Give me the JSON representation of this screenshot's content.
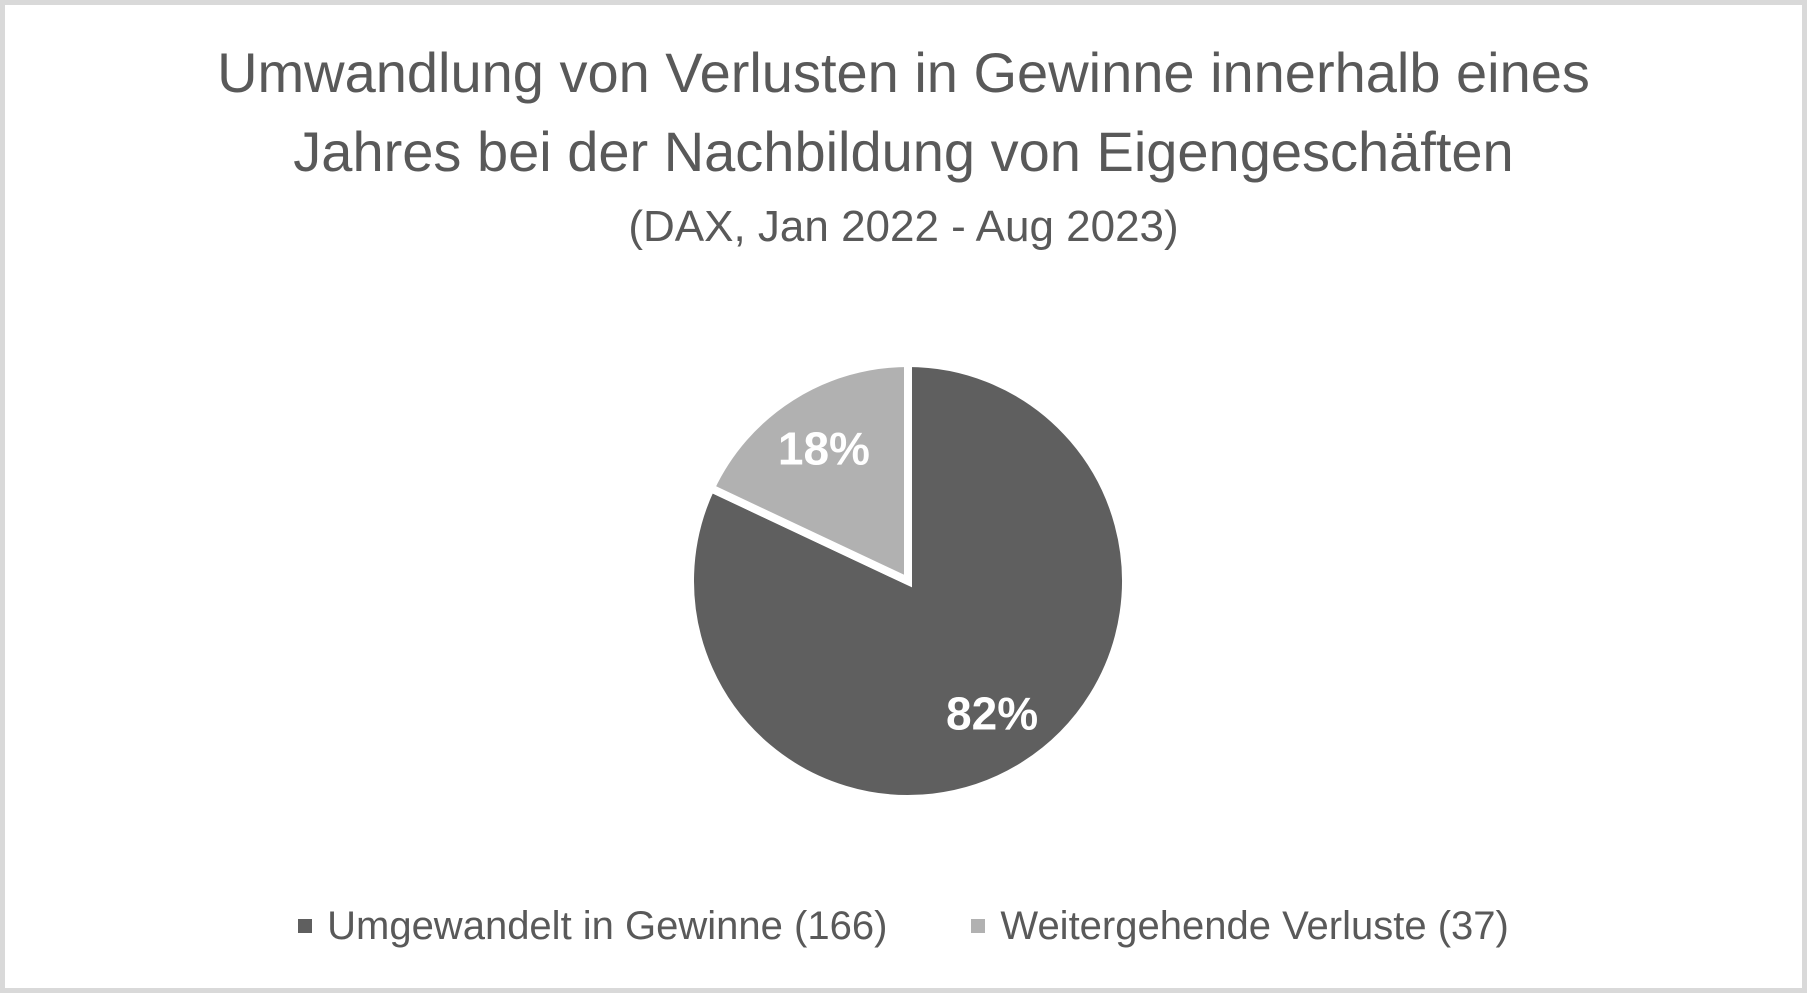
{
  "frame": {
    "background": "#ffffff",
    "border_color": "#d9d9d9"
  },
  "title": {
    "line1": "Umwandlung von Verlusten in Gewinne innerhalb eines",
    "line2": "Jahres bei der Nachbildung von Eigengeschäften",
    "subtitle": "(DAX, Jan 2022 - Aug 2023)",
    "color": "#595959"
  },
  "legend": {
    "items": [
      {
        "label": "Umgewandelt in Gewinne (166)",
        "color": "#5f5f5f"
      },
      {
        "label": "Weitergehende Verluste (37)",
        "color": "#b1b1b1"
      }
    ]
  },
  "chart_data": {
    "type": "pie",
    "title": "Umwandlung von Verlusten in Gewinne innerhalb eines Jahres bei der Nachbildung von Eigengeschäften",
    "subtitle": "(DAX, Jan 2022 - Aug 2023)",
    "categories": [
      "Umgewandelt in Gewinne",
      "Weitergehende Verluste"
    ],
    "values": [
      166,
      37
    ],
    "percents": [
      82,
      18
    ],
    "percent_labels": [
      "82%",
      "18%"
    ],
    "colors": [
      "#5f5f5f",
      "#b1b1b1"
    ],
    "data_label_color": "#ffffff",
    "slice_border_color": "#ffffff",
    "start_angle_deg": 0,
    "direction": "clockwise",
    "legend_position": "bottom"
  }
}
